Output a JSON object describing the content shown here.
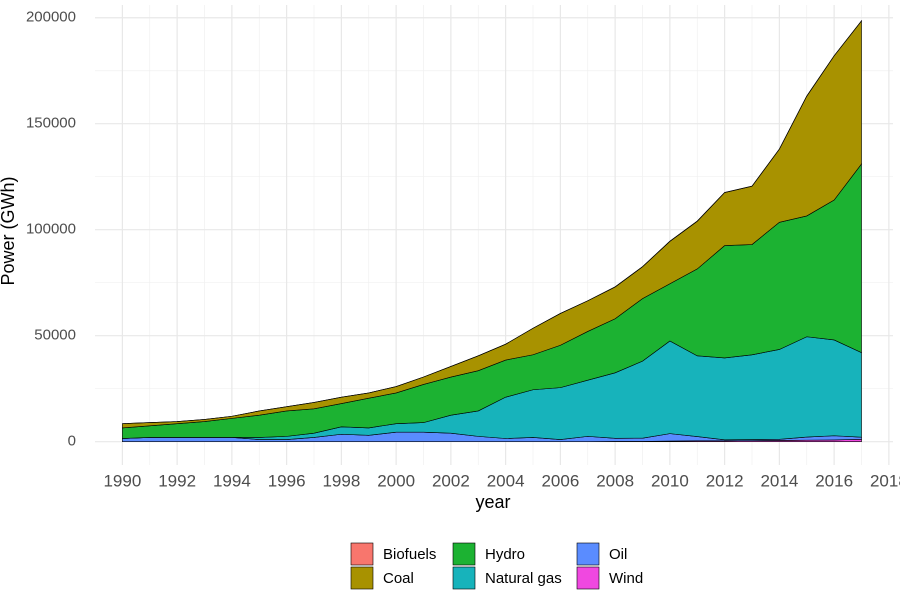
{
  "chart_data": {
    "type": "stacked-area",
    "x_label": "year",
    "y_label": "Power (GWh)",
    "x": [
      1990,
      1991,
      1992,
      1993,
      1994,
      1995,
      1996,
      1997,
      1998,
      1999,
      2000,
      2001,
      2002,
      2003,
      2004,
      2005,
      2006,
      2007,
      2008,
      2009,
      2010,
      2011,
      2012,
      2013,
      2014,
      2015,
      2016,
      2017
    ],
    "series": [
      {
        "name": "Biofuels",
        "color": "#F8766D",
        "values": [
          0,
          0,
          0,
          0,
          0,
          0,
          0,
          0,
          0,
          0,
          0,
          0,
          0,
          0,
          0,
          0,
          0,
          0,
          100,
          100,
          100,
          100,
          100,
          100,
          100,
          100,
          100,
          100
        ]
      },
      {
        "name": "Coal",
        "color": "#a89200",
        "values": [
          2000,
          1500,
          1000,
          1000,
          1000,
          2000,
          2000,
          3000,
          3000,
          2500,
          3000,
          3500,
          5000,
          7000,
          7500,
          12500,
          15000,
          14500,
          15000,
          15000,
          20000,
          22500,
          25000,
          27500,
          34500,
          56500,
          68000,
          67500
        ]
      },
      {
        "name": "Hydro",
        "color": "#1cb232",
        "values": [
          5000,
          5500,
          6500,
          7500,
          9000,
          10500,
          12000,
          11500,
          11000,
          14000,
          14500,
          18000,
          18000,
          19000,
          17500,
          16500,
          20000,
          23000,
          25500,
          29500,
          27000,
          41000,
          53000,
          52000,
          60000,
          57000,
          66000,
          89000
        ]
      },
      {
        "name": "Natural gas",
        "color": "#17b3bb",
        "values": [
          0,
          0,
          0,
          0,
          0,
          1000,
          1500,
          2000,
          3500,
          3500,
          4000,
          4500,
          8500,
          12000,
          19500,
          22500,
          24500,
          26500,
          30900,
          36350,
          43700,
          38100,
          38600,
          40000,
          42400,
          47300,
          45200,
          39900
        ]
      },
      {
        "name": "Oil",
        "color": "#5a8cff",
        "values": [
          1500,
          2000,
          2000,
          2000,
          2000,
          1000,
          1000,
          2000,
          3500,
          3000,
          4500,
          4500,
          4000,
          2500,
          1500,
          2000,
          1000,
          2500,
          1500,
          1500,
          3500,
          2000,
          500,
          500,
          500,
          1500,
          2000,
          1000
        ]
      },
      {
        "name": "Wind",
        "color": "#f048e0",
        "values": [
          0,
          0,
          0,
          0,
          0,
          0,
          0,
          0,
          0,
          0,
          0,
          0,
          0,
          0,
          0,
          0,
          0,
          0,
          100,
          150,
          300,
          400,
          400,
          500,
          600,
          700,
          800,
          1100
        ]
      }
    ],
    "xlim": [
      1989,
      2018.15
    ],
    "xticks": [
      1990,
      1992,
      1994,
      1996,
      1998,
      2000,
      2002,
      2004,
      2006,
      2008,
      2010,
      2012,
      2014,
      2016,
      2018
    ],
    "ylim": [
      -11000,
      206000
    ],
    "yticks": [
      0,
      50000,
      100000,
      150000,
      200000
    ],
    "grid": true,
    "legend": "bottom"
  }
}
